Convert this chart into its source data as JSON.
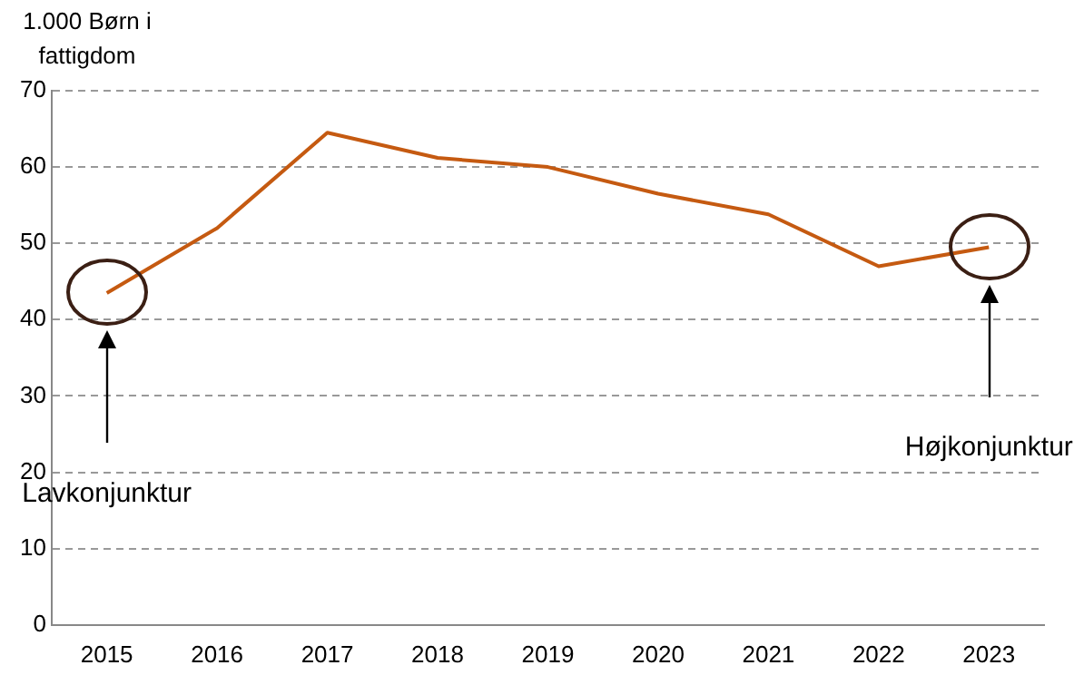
{
  "chart_data": {
    "type": "line",
    "ylabel": "1.000 Børn i fattigdom",
    "categories": [
      "2015",
      "2016",
      "2017",
      "2018",
      "2019",
      "2020",
      "2021",
      "2022",
      "2023"
    ],
    "series": [
      {
        "color": "#c55a11",
        "values": [
          43.5,
          52,
          64.5,
          61.2,
          60,
          56.5,
          53.8,
          47,
          49.5
        ]
      }
    ],
    "ylim": [
      0,
      70
    ],
    "yticks": [
      0,
      10,
      20,
      30,
      40,
      50,
      60,
      70
    ],
    "grid": "y",
    "legend": false,
    "marker": "none",
    "line_style": "solid",
    "annotations": [
      "Lavkonjunktur",
      "Højkonjunktur"
    ]
  }
}
